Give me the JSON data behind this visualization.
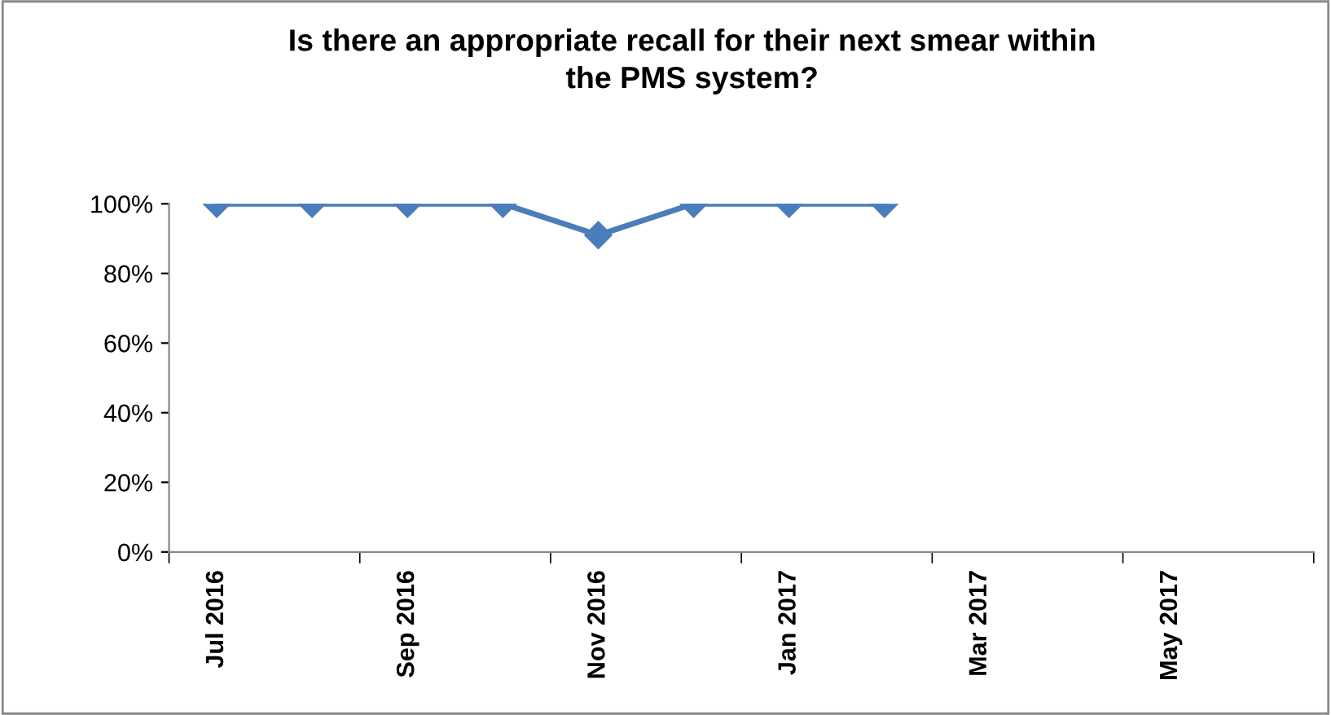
{
  "chart_data": {
    "type": "line",
    "title": "Is there an appropriate recall for their next smear within\nthe PMS system?",
    "categories": [
      "Jul 2016",
      null,
      "Sep 2016",
      null,
      "Nov 2016",
      null,
      "Jan 2017",
      null,
      "Mar 2017",
      null,
      "May 2017",
      null
    ],
    "series": [
      {
        "color": "#4a7ebb",
        "values": [
          100,
          100,
          100,
          100,
          91,
          100,
          100,
          100,
          null,
          null,
          null,
          null
        ]
      }
    ],
    "ylim": [
      0,
      100
    ],
    "yticks": [
      {
        "value": 0,
        "label": "0%"
      },
      {
        "value": 20,
        "label": "20%"
      },
      {
        "value": 40,
        "label": "40%"
      },
      {
        "value": 60,
        "label": "60%"
      },
      {
        "value": 80,
        "label": "80%"
      },
      {
        "value": 100,
        "label": "100%"
      }
    ],
    "marker": "diamond",
    "line_style": "solid",
    "grid": false,
    "legend": false
  }
}
